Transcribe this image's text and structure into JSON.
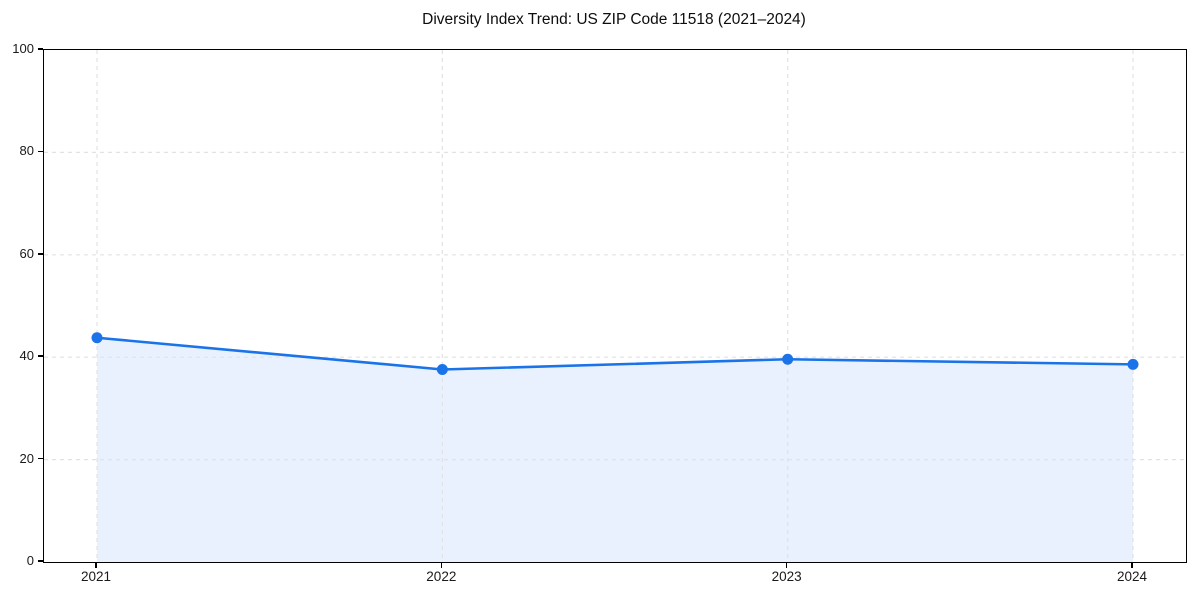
{
  "chart_data": {
    "type": "area",
    "title": "Diversity Index Trend: US ZIP Code 11518 (2021–2024)",
    "x": [
      "2021",
      "2022",
      "2023",
      "2024"
    ],
    "series": [
      {
        "name": "Diversity Index",
        "values": [
          43.8,
          37.6,
          39.6,
          38.6
        ]
      }
    ],
    "ylim": [
      0,
      100
    ],
    "yticks": [
      0,
      20,
      40,
      60,
      80,
      100
    ],
    "grid": "dashed, both axes at tick positions",
    "legend": "none",
    "colors": {
      "line": "#1a73e8",
      "marker": "#1a73e8",
      "fill": "#e8f1fd",
      "grid": "#e2e2e2",
      "spine": "#000000",
      "text": "#1a1a1a"
    }
  }
}
